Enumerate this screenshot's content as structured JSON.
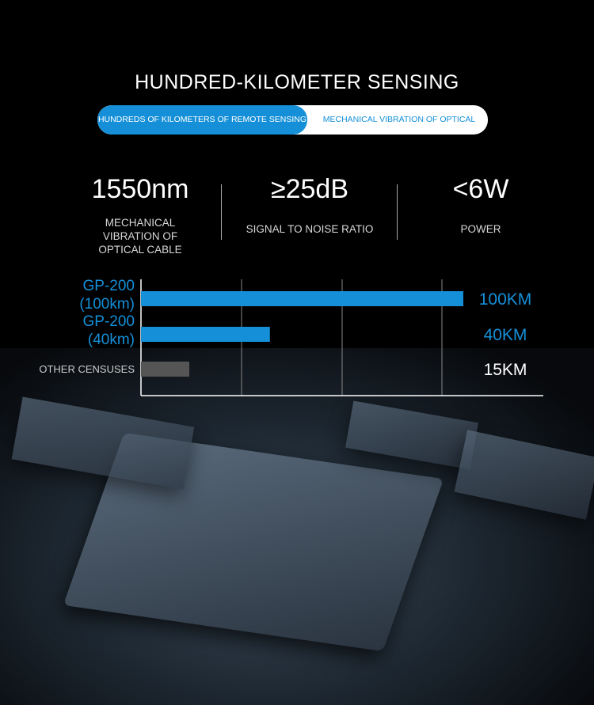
{
  "header": {
    "title": "HUNDRED-KILOMETER SENSING"
  },
  "tabs": [
    {
      "label": "HUNDREDS OF KILOMETERS OF REMOTE SENSING",
      "active": true
    },
    {
      "label": "MECHANICAL VIBRATION OF OPTICAL CABLE",
      "active": false
    }
  ],
  "stats": [
    {
      "value": "1550nm",
      "label": "MECHANICAL VIBRATION OF OPTICAL CABLE"
    },
    {
      "value": "≥25dB",
      "label": "SIGNAL TO NOISE RATIO"
    },
    {
      "value": "<6W",
      "label": "POWER"
    }
  ],
  "colors": {
    "accent": "#1590d8",
    "other_bar": "#555555",
    "background": "#000000"
  },
  "chart_data": {
    "type": "bar",
    "orientation": "horizontal",
    "categories": [
      "GP-200 (100km)",
      "GP-200 (40km)",
      "OTHER CENSUSES"
    ],
    "category_lines": [
      [
        "GP-200",
        "(100km)"
      ],
      [
        "GP-200",
        "(40km)"
      ],
      [
        "OTHER CENSUSES"
      ]
    ],
    "values": [
      100,
      40,
      15
    ],
    "data_labels": [
      "100KM",
      "40KM",
      "15KM"
    ],
    "bar_colors": [
      "#1590d8",
      "#1590d8",
      "#555555"
    ],
    "label_colors": [
      "#1590d8",
      "#1590d8",
      "#ffffff"
    ],
    "unit": "KM",
    "xlim": [
      0,
      100
    ],
    "grid": true
  }
}
